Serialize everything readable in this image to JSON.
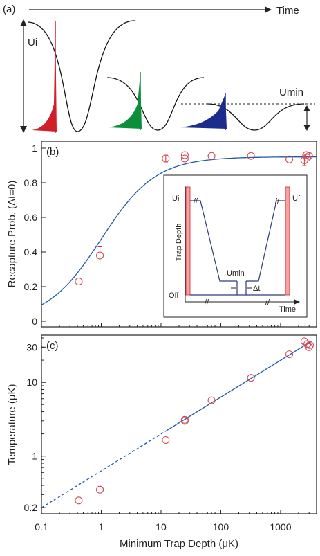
{
  "panel_a": {
    "tag": "(a)",
    "time_label": "Time",
    "ui_label": "Ui",
    "umin_label": "Umin",
    "colors": {
      "red": "#d0202a",
      "green": "#0c8f3a",
      "blue": "#1c2c8c"
    }
  },
  "chart_data": [
    {
      "type": "scatter",
      "panel": "(b)",
      "xscale": "log",
      "xlim": [
        0.1,
        4000
      ],
      "ylim": [
        0,
        1.0
      ],
      "yticks": [
        0,
        0.2,
        0.4,
        0.6,
        0.8,
        1
      ],
      "ylabel": "Recapture Prob. (Δt=0)",
      "points": [
        {
          "x": 0.42,
          "y": 0.23
        },
        {
          "x": 0.95,
          "y": 0.38,
          "err": 0.05
        },
        {
          "x": 12,
          "y": 0.94,
          "err": 0.02
        },
        {
          "x": 25,
          "y": 0.94
        },
        {
          "x": 25,
          "y": 0.96
        },
        {
          "x": 70,
          "y": 0.955
        },
        {
          "x": 320,
          "y": 0.955
        },
        {
          "x": 1400,
          "y": 0.935
        },
        {
          "x": 2500,
          "y": 0.93,
          "err": 0.03
        },
        {
          "x": 2700,
          "y": 0.96
        },
        {
          "x": 3000,
          "y": 0.955
        },
        {
          "x": 2800,
          "y": 0.945
        }
      ],
      "fit": {
        "type": "sigmoid",
        "plateau": 0.95
      },
      "inset": {
        "ylabel": "Trap Depth",
        "xlabel": "Time",
        "labels": {
          "ui": "Ui",
          "uf": "Uf",
          "umin": "Umin",
          "off": "Off",
          "dt": "Δt"
        }
      }
    },
    {
      "type": "scatter",
      "panel": "(c)",
      "xscale": "log",
      "yscale": "log",
      "xlim": [
        0.1,
        4000
      ],
      "ylim": [
        0.18,
        40
      ],
      "xticks": [
        0.1,
        1,
        10,
        100,
        1000
      ],
      "xtick_labels": [
        "0.1",
        "1",
        "10",
        "100",
        "1000"
      ],
      "yticks": [
        0.2,
        1,
        10,
        30
      ],
      "ytick_labels": [
        "0.2",
        "1",
        "10",
        "30"
      ],
      "xlabel": "Minimum Trap Depth (μK)",
      "ylabel": "Temperature (μK)",
      "points": [
        {
          "x": 0.42,
          "y": 0.25
        },
        {
          "x": 0.95,
          "y": 0.35
        },
        {
          "x": 12,
          "y": 1.65
        },
        {
          "x": 25,
          "y": 3.0
        },
        {
          "x": 25,
          "y": 3.1
        },
        {
          "x": 70,
          "y": 5.7
        },
        {
          "x": 320,
          "y": 11.5
        },
        {
          "x": 1400,
          "y": 24
        },
        {
          "x": 2500,
          "y": 36
        },
        {
          "x": 2800,
          "y": 33
        },
        {
          "x": 3000,
          "y": 30
        },
        {
          "x": 3100,
          "y": 32
        }
      ],
      "fit": {
        "type": "power",
        "exponent": 0.5,
        "coef": 0.63,
        "dashed_below": 12
      }
    }
  ]
}
